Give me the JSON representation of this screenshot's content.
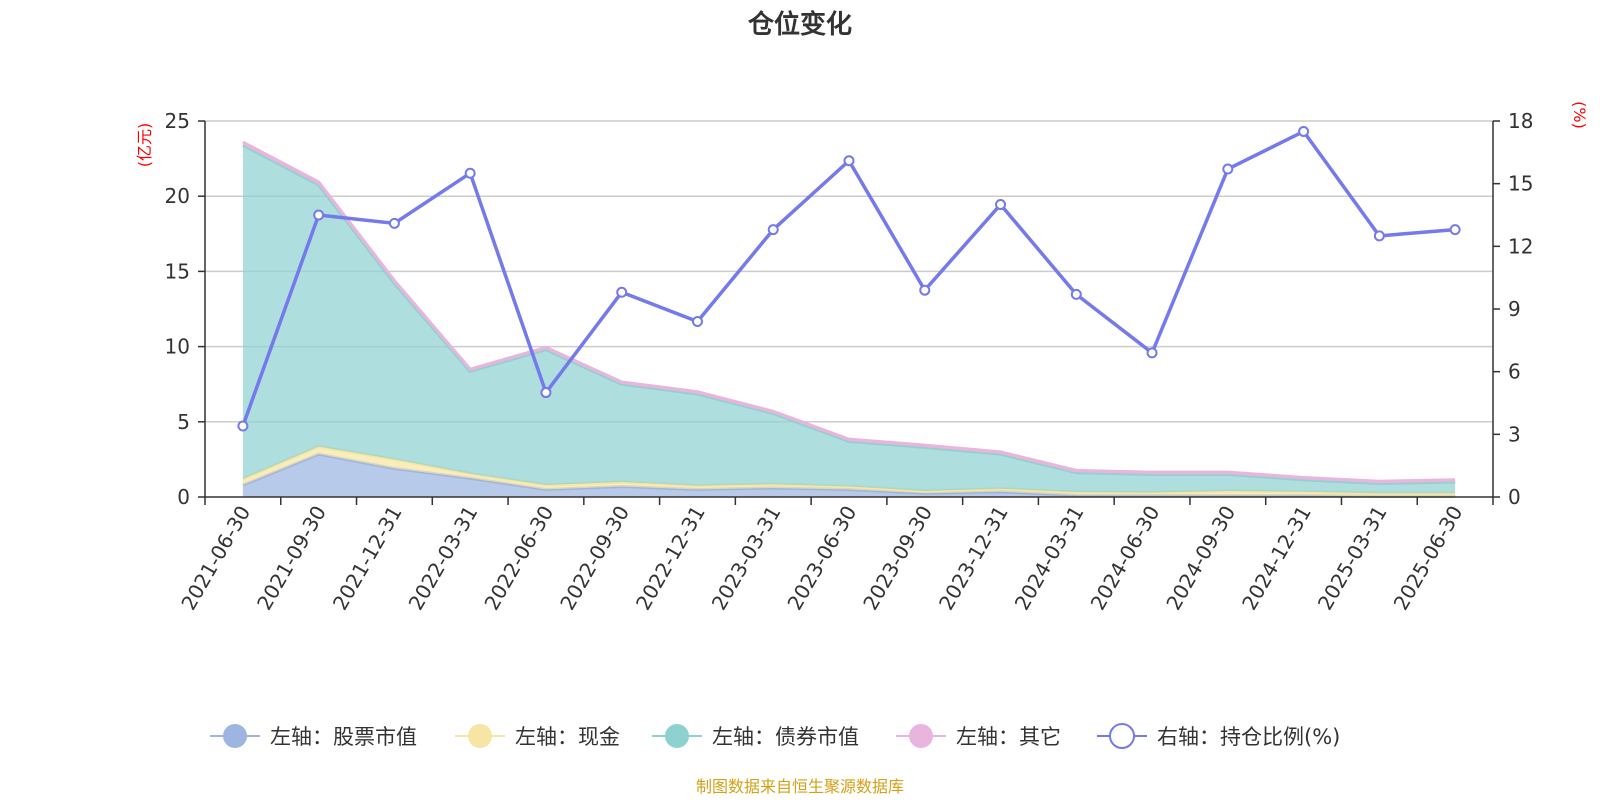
{
  "title": "仓位变化",
  "source": "制图数据来自恒生聚源数据库",
  "left_unit": "(亿元)",
  "right_unit": "(%)",
  "chart_data": {
    "type": "area",
    "categories": [
      "2021-06-30",
      "2021-09-30",
      "2021-12-31",
      "2022-03-31",
      "2022-06-30",
      "2022-09-30",
      "2022-12-31",
      "2023-03-31",
      "2023-06-30",
      "2023-09-30",
      "2023-12-31",
      "2024-03-31",
      "2024-06-30",
      "2024-09-30",
      "2024-12-31",
      "2025-03-31",
      "2025-06-30"
    ],
    "left_axis": {
      "min": 0,
      "max": 25,
      "ticks": [
        "0",
        "5",
        "10",
        "15",
        "20",
        "25"
      ],
      "unit": "(亿元)"
    },
    "right_axis": {
      "min": 0,
      "max": 18,
      "ticks": [
        "0",
        "3",
        "6",
        "9",
        "12",
        "15",
        "18"
      ],
      "unit": "(%)"
    },
    "stacked": true,
    "series": [
      {
        "name": "左轴：股票市值",
        "axis": "left",
        "type": "area",
        "color": "#9db5e0",
        "values": [
          0.8,
          2.85,
          1.9,
          1.25,
          0.5,
          0.7,
          0.5,
          0.6,
          0.5,
          0.25,
          0.35,
          0.12,
          0.1,
          0.1,
          0.1,
          0.05,
          0.05
        ]
      },
      {
        "name": "左轴：现金",
        "axis": "left",
        "type": "area",
        "color": "#f7e5a3",
        "values": [
          0.4,
          0.5,
          0.6,
          0.3,
          0.3,
          0.3,
          0.25,
          0.25,
          0.2,
          0.15,
          0.2,
          0.2,
          0.2,
          0.3,
          0.25,
          0.2,
          0.2
        ]
      },
      {
        "name": "左轴：债券市值",
        "axis": "left",
        "type": "area",
        "color": "#8fd1d0",
        "values": [
          22.2,
          17.4,
          11.7,
          6.8,
          9.0,
          6.5,
          6.1,
          4.7,
          3.0,
          2.9,
          2.3,
          1.3,
          1.2,
          1.1,
          0.8,
          0.65,
          0.75
        ]
      },
      {
        "name": "左轴：其它",
        "axis": "left",
        "type": "area",
        "color": "#e9b5dc",
        "values": [
          0.2,
          0.2,
          0.2,
          0.15,
          0.15,
          0.15,
          0.15,
          0.15,
          0.15,
          0.15,
          0.15,
          0.15,
          0.15,
          0.15,
          0.15,
          0.15,
          0.15
        ]
      },
      {
        "name": "右轴：持仓比例(%)",
        "axis": "right",
        "type": "line",
        "color": "#7479ec",
        "values": [
          3.4,
          13.5,
          13.1,
          15.5,
          5.0,
          9.8,
          8.4,
          12.8,
          16.1,
          9.9,
          14.0,
          9.7,
          6.9,
          15.7,
          17.5,
          12.5,
          12.8
        ]
      }
    ],
    "grid": true,
    "legend_position": "bottom"
  }
}
